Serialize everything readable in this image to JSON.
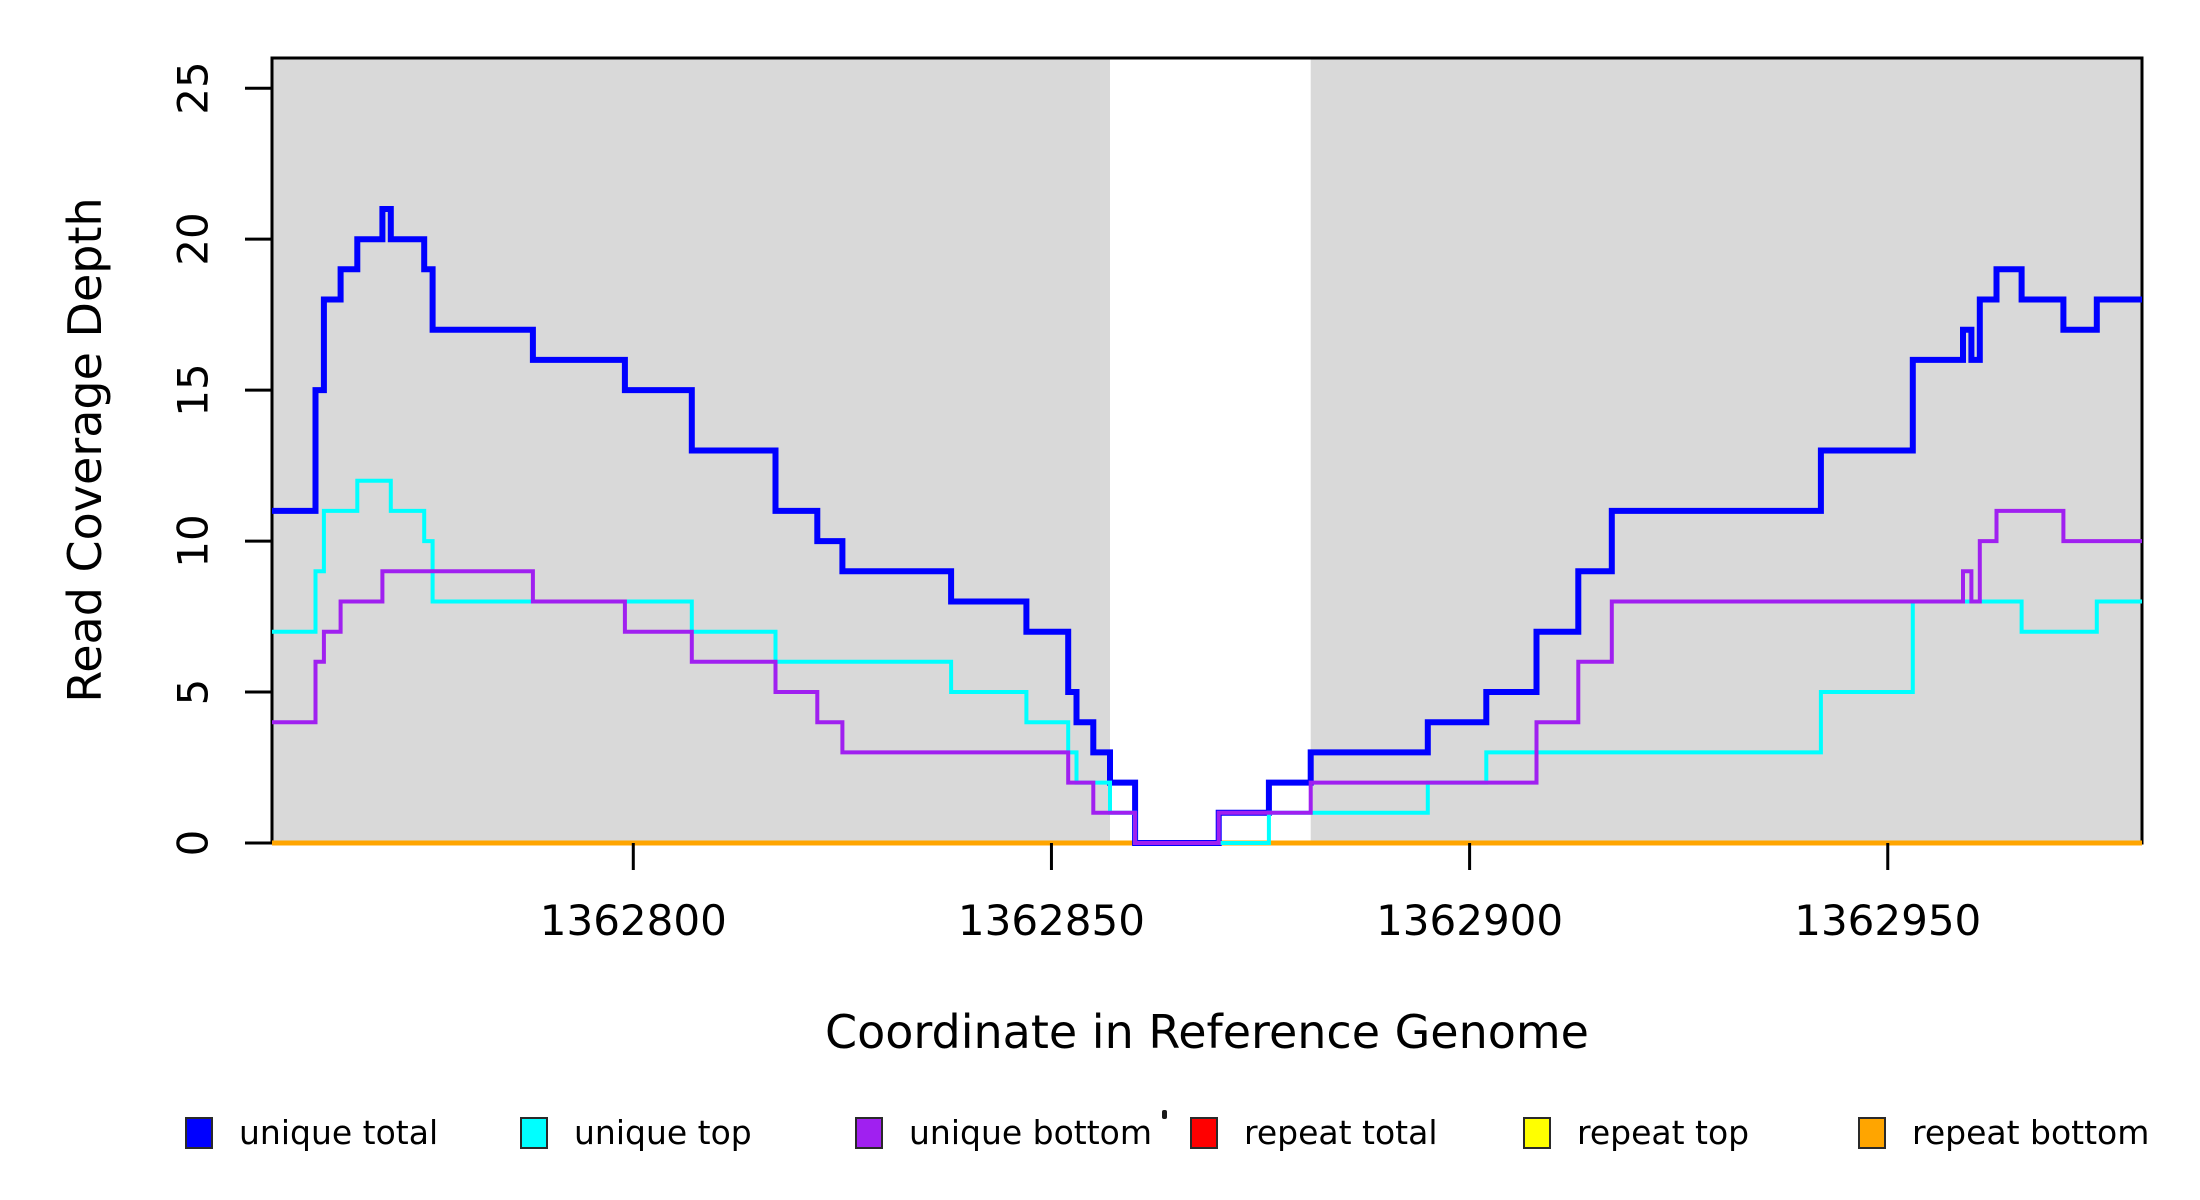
{
  "chart_data": {
    "type": "line",
    "line_style": "step",
    "title": "",
    "xlabel": "Coordinate in Reference Genome",
    "ylabel": "Read Coverage Depth",
    "xlim": [
      1362756.8,
      1362980.4
    ],
    "ylim": [
      0,
      26
    ],
    "x_ticks": [
      1362800,
      1362850,
      1362900,
      1362950
    ],
    "x_tick_labels": [
      "1362800",
      "1362850",
      "1362900",
      "1362950"
    ],
    "y_ticks": [
      0,
      5,
      10,
      15,
      20,
      25
    ],
    "y_tick_labels": [
      "0",
      "5",
      "10",
      "15",
      "20",
      "25"
    ],
    "grid": false,
    "plot_background": "#FFFFFF",
    "shaded_bands": [
      {
        "x0": 1362756.8,
        "x1": 1362857,
        "color": "#D9D9D9"
      },
      {
        "x0": 1362881,
        "x1": 1362980.4,
        "color": "#D9D9D9"
      }
    ],
    "series": [
      {
        "name": "repeat total",
        "color": "#FF0000",
        "width": 5,
        "steps": [
          [
            1362756.8,
            0
          ]
        ]
      },
      {
        "name": "repeat top",
        "color": "#FFFF00",
        "width": 5,
        "steps": [
          [
            1362756.8,
            0
          ]
        ]
      },
      {
        "name": "repeat bottom",
        "color": "#FFA500",
        "width": 5,
        "steps": [
          [
            1362756.8,
            0
          ]
        ]
      },
      {
        "name": "unique total",
        "color": "#0000FF",
        "width": 6,
        "steps": [
          [
            1362756.8,
            11
          ],
          [
            1362762,
            15
          ],
          [
            1362763,
            18
          ],
          [
            1362765,
            19
          ],
          [
            1362767,
            20
          ],
          [
            1362770,
            21
          ],
          [
            1362771,
            20
          ],
          [
            1362775,
            19
          ],
          [
            1362776,
            17
          ],
          [
            1362788,
            16
          ],
          [
            1362799,
            15
          ],
          [
            1362807,
            13
          ],
          [
            1362817,
            11
          ],
          [
            1362822,
            10
          ],
          [
            1362825,
            9
          ],
          [
            1362838,
            8
          ],
          [
            1362847,
            7
          ],
          [
            1362852,
            5
          ],
          [
            1362853,
            4
          ],
          [
            1362855,
            3
          ],
          [
            1362857,
            2
          ],
          [
            1362860,
            0
          ],
          [
            1362870,
            1
          ],
          [
            1362876,
            2
          ],
          [
            1362881,
            3
          ],
          [
            1362895,
            4
          ],
          [
            1362902,
            5
          ],
          [
            1362908,
            7
          ],
          [
            1362913,
            9
          ],
          [
            1362917,
            11
          ],
          [
            1362942,
            13
          ],
          [
            1362953,
            16
          ],
          [
            1362959,
            17
          ],
          [
            1362960,
            16
          ],
          [
            1362961,
            18
          ],
          [
            1362963,
            19
          ],
          [
            1362966,
            18
          ],
          [
            1362971,
            17
          ],
          [
            1362975,
            18
          ]
        ]
      },
      {
        "name": "unique top",
        "color": "#00FFFF",
        "width": 4,
        "steps": [
          [
            1362756.8,
            7
          ],
          [
            1362762,
            9
          ],
          [
            1362763,
            11
          ],
          [
            1362767,
            12
          ],
          [
            1362771,
            11
          ],
          [
            1362775,
            10
          ],
          [
            1362776,
            8
          ],
          [
            1362807,
            7
          ],
          [
            1362817,
            6
          ],
          [
            1362838,
            5
          ],
          [
            1362847,
            4
          ],
          [
            1362852,
            3
          ],
          [
            1362853,
            2
          ],
          [
            1362857,
            1
          ],
          [
            1362860,
            0
          ],
          [
            1362876,
            1
          ],
          [
            1362895,
            2
          ],
          [
            1362902,
            3
          ],
          [
            1362942,
            5
          ],
          [
            1362953,
            8
          ],
          [
            1362966,
            7
          ],
          [
            1362975,
            8
          ]
        ]
      },
      {
        "name": "unique bottom",
        "color": "#A020F0",
        "width": 4,
        "steps": [
          [
            1362756.8,
            4
          ],
          [
            1362762,
            6
          ],
          [
            1362763,
            7
          ],
          [
            1362765,
            8
          ],
          [
            1362770,
            9
          ],
          [
            1362788,
            8
          ],
          [
            1362799,
            7
          ],
          [
            1362807,
            6
          ],
          [
            1362817,
            5
          ],
          [
            1362822,
            4
          ],
          [
            1362825,
            3
          ],
          [
            1362852,
            2
          ],
          [
            1362855,
            1
          ],
          [
            1362860,
            0
          ],
          [
            1362870,
            1
          ],
          [
            1362881,
            2
          ],
          [
            1362908,
            4
          ],
          [
            1362913,
            6
          ],
          [
            1362917,
            8
          ],
          [
            1362959,
            9
          ],
          [
            1362960,
            8
          ],
          [
            1362961,
            10
          ],
          [
            1362963,
            11
          ],
          [
            1362971,
            10
          ]
        ]
      }
    ],
    "legend": {
      "position": "bottom",
      "entries": [
        {
          "label": "unique total",
          "color": "#0000FF"
        },
        {
          "label": "unique top",
          "color": "#00FFFF"
        },
        {
          "label": "unique bottom",
          "color": "#A020F0"
        },
        {
          "label": "repeat total",
          "color": "#FF0000"
        },
        {
          "label": "repeat top",
          "color": "#FFFF00"
        },
        {
          "label": "repeat bottom",
          "color": "#FFA500"
        }
      ]
    }
  }
}
